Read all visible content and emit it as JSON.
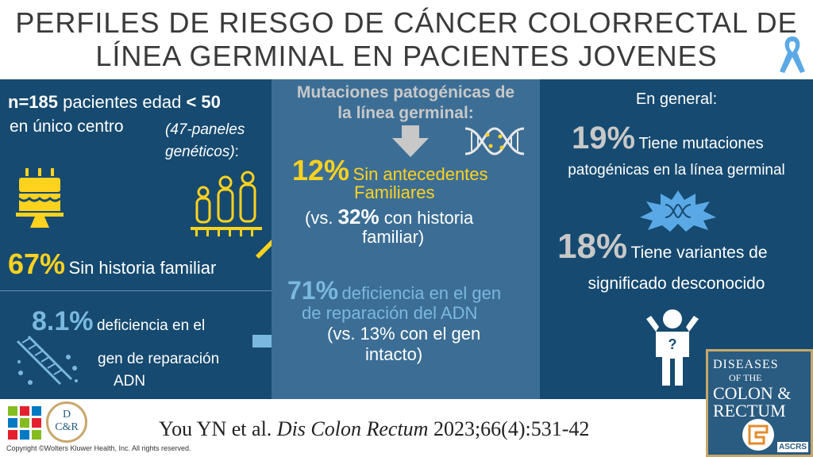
{
  "title": {
    "line1": "PERFILES DE RIESGO DE CÁNCER COLORRECTAL DE",
    "line2": "LÍNEA GERMINAL EN PACIENTES JOVENES"
  },
  "left": {
    "n_bold": "n=185",
    "n_text": " pacientes edad ",
    "age_bold": "< 50",
    "center_text": "en único centro ",
    "panels_italic": "(47-paneles genéticos)",
    "panels_end": ":",
    "pct67": "67%",
    "pct67_text": "Sin historia familiar",
    "pct81": "8.1%",
    "pct81_text1": "deficiencia en el",
    "pct81_text2": "gen de reparación",
    "pct81_text3": "ADN"
  },
  "center": {
    "heading1": "Mutaciones patogénicas de",
    "heading2": "la línea germinal:",
    "pct12": "12%",
    "pct12_text1": "Sin antecedentes",
    "pct12_text2": "Familiares",
    "vs1_a": "(vs. ",
    "vs1_pct": "32%",
    "vs1_b": " con historia",
    "vs1_c": "familiar)",
    "pct71": "71%",
    "pct71_text1": "deficiencia en el gen",
    "pct71_text2": "de reparación del ADN",
    "vs2_a": "(vs. 13% con el gen",
    "vs2_b": "intacto)"
  },
  "right": {
    "heading": "En general:",
    "pct19": "19%",
    "pct19_text1": "Tiene mutaciones",
    "pct19_text2": "patogénicas en la línea germinal",
    "pct18": "18%",
    "pct18_text1": "Tiene variantes de",
    "pct18_text2": "significado desconocido"
  },
  "footer": {
    "cite_a": "You YN et al. ",
    "cite_journal": "Dis Colon Rectum",
    "cite_b": " 2023;66(4):531-42",
    "copyright": "Copyright ©Wolters Kluwer Health, Inc. All rights reserved.",
    "dcr_logo_top": "D",
    "dcr_logo_bottom": "C&R"
  },
  "journal": {
    "line1": "DISEASES",
    "line2": "OF THE",
    "line3": "COLON &",
    "line4": "RECTUM",
    "badge": "ASCRS"
  },
  "colors": {
    "dark_panel": "#164a70",
    "mid_panel": "#3c6e95",
    "yellow": "#ffd21e",
    "light_blue": "#7ab8e0"
  }
}
